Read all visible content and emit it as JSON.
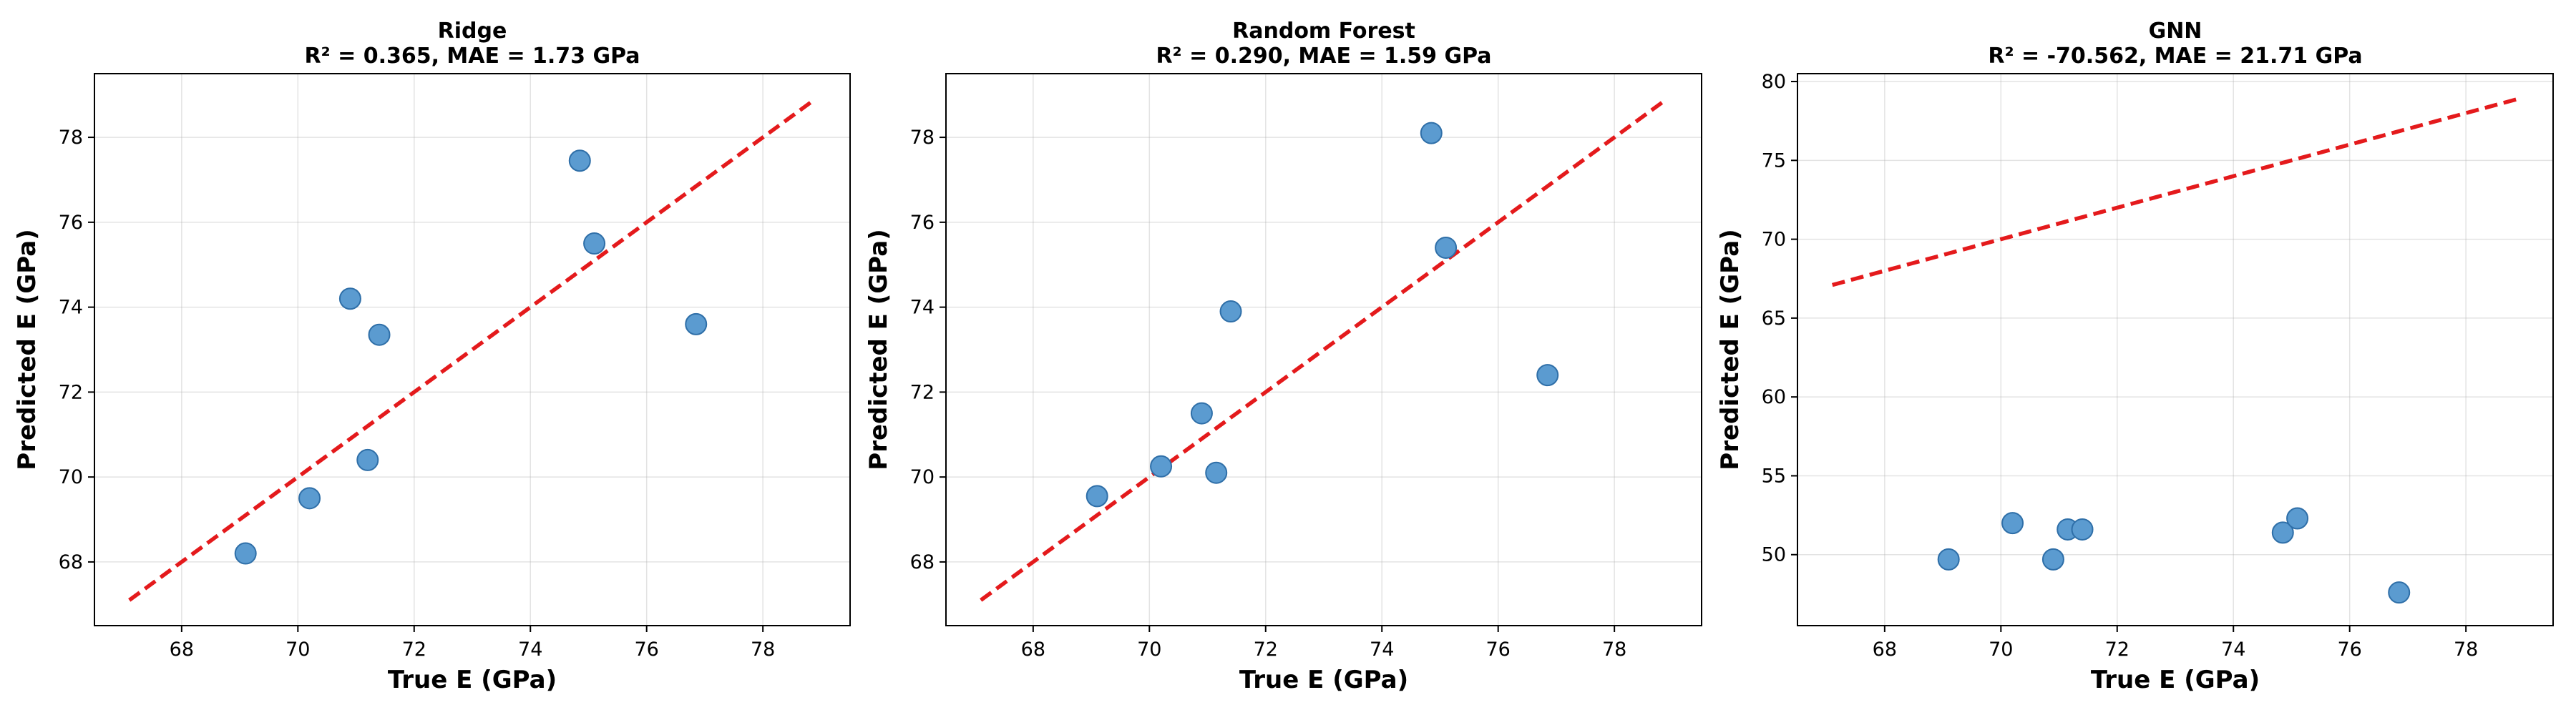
{
  "colors": {
    "point_fill": "#5b9bd0",
    "point_edge": "#2f6fa8",
    "reference_line": "#e41a1c"
  },
  "chart_data": [
    {
      "type": "scatter",
      "name": "ridge",
      "title": "Ridge",
      "subtitle": "R² = 0.365, MAE = 1.73 GPa",
      "xlabel": "True E (GPa)",
      "ylabel": "Predicted E (GPa)",
      "xlim": [
        66.5,
        79.5
      ],
      "ylim": [
        66.5,
        79.5
      ],
      "xticks": [
        68,
        70,
        72,
        74,
        76,
        78
      ],
      "yticks": [
        68,
        70,
        72,
        74,
        76,
        78
      ],
      "grid": true,
      "reference_line": {
        "style": "dashed",
        "from": [
          67.1,
          67.1
        ],
        "to": [
          78.9,
          78.9
        ]
      },
      "points": [
        {
          "x": 69.1,
          "y": 68.2
        },
        {
          "x": 70.2,
          "y": 69.5
        },
        {
          "x": 70.9,
          "y": 74.2
        },
        {
          "x": 71.2,
          "y": 70.4
        },
        {
          "x": 71.4,
          "y": 73.35
        },
        {
          "x": 74.85,
          "y": 77.45
        },
        {
          "x": 75.1,
          "y": 75.5
        },
        {
          "x": 76.85,
          "y": 73.6
        }
      ]
    },
    {
      "type": "scatter",
      "name": "random-forest",
      "title": "Random Forest",
      "subtitle": "R² = 0.290, MAE = 1.59 GPa",
      "xlabel": "True E (GPa)",
      "ylabel": "Predicted E (GPa)",
      "xlim": [
        66.5,
        79.5
      ],
      "ylim": [
        66.5,
        79.5
      ],
      "xticks": [
        68,
        70,
        72,
        74,
        76,
        78
      ],
      "yticks": [
        68,
        70,
        72,
        74,
        76,
        78
      ],
      "grid": true,
      "reference_line": {
        "style": "dashed",
        "from": [
          67.1,
          67.1
        ],
        "to": [
          78.9,
          78.9
        ]
      },
      "points": [
        {
          "x": 69.1,
          "y": 69.55
        },
        {
          "x": 70.2,
          "y": 70.25
        },
        {
          "x": 70.9,
          "y": 71.5
        },
        {
          "x": 71.15,
          "y": 70.1
        },
        {
          "x": 71.4,
          "y": 73.9
        },
        {
          "x": 74.85,
          "y": 78.1
        },
        {
          "x": 75.1,
          "y": 75.4
        },
        {
          "x": 76.85,
          "y": 72.4
        }
      ]
    },
    {
      "type": "scatter",
      "name": "gnn",
      "title": "GNN",
      "subtitle": "R² = -70.562, MAE = 21.71 GPa",
      "xlabel": "True E (GPa)",
      "ylabel": "Predicted E (GPa)",
      "xlim": [
        66.5,
        79.5
      ],
      "ylim": [
        45.5,
        80.5
      ],
      "xticks": [
        68,
        70,
        72,
        74,
        76,
        78
      ],
      "yticks": [
        50,
        55,
        60,
        65,
        70,
        75,
        80
      ],
      "grid": true,
      "reference_line": {
        "style": "dashed",
        "from": [
          67.1,
          67.1
        ],
        "to": [
          78.9,
          78.9
        ]
      },
      "points": [
        {
          "x": 69.1,
          "y": 49.7
        },
        {
          "x": 70.2,
          "y": 52.0
        },
        {
          "x": 70.9,
          "y": 49.7
        },
        {
          "x": 71.15,
          "y": 51.6
        },
        {
          "x": 71.4,
          "y": 51.6
        },
        {
          "x": 74.85,
          "y": 51.4
        },
        {
          "x": 75.1,
          "y": 52.3
        },
        {
          "x": 76.85,
          "y": 47.6
        }
      ]
    }
  ]
}
